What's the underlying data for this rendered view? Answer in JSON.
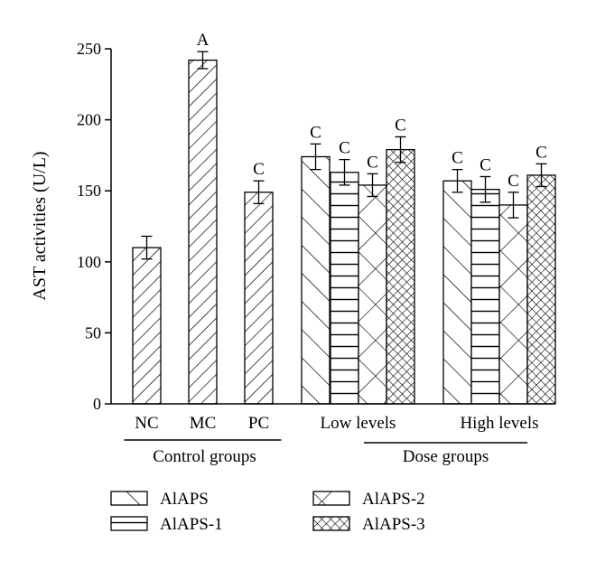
{
  "chart_data": {
    "type": "bar",
    "ylabel": "AST activities (U/L)",
    "xlabel": "",
    "title": "",
    "ylim": [
      0,
      250
    ],
    "yticks": [
      0,
      50,
      100,
      150,
      200,
      250
    ],
    "grid": false,
    "legend_position": "bottom",
    "bars": [
      {
        "group": "NC",
        "series": "NC",
        "value": 110,
        "error": 8,
        "label": "",
        "pattern": "diag"
      },
      {
        "group": "MC",
        "series": "MC",
        "value": 242,
        "error": 6,
        "label": "A",
        "pattern": "diag"
      },
      {
        "group": "PC",
        "series": "PC",
        "value": 149,
        "error": 8,
        "label": "C",
        "pattern": "diag"
      },
      {
        "group": "Low levels",
        "series": "AlAPS",
        "value": 174,
        "error": 9,
        "label": "C",
        "pattern": "backdiag"
      },
      {
        "group": "Low levels",
        "series": "AlAPS-1",
        "value": 163,
        "error": 9,
        "label": "C",
        "pattern": "horiz"
      },
      {
        "group": "Low levels",
        "series": "AlAPS-2",
        "value": 154,
        "error": 8,
        "label": "C",
        "pattern": "cross"
      },
      {
        "group": "Low levels",
        "series": "AlAPS-3",
        "value": 179,
        "error": 9,
        "label": "C",
        "pattern": "dense"
      },
      {
        "group": "High levels",
        "series": "AlAPS",
        "value": 157,
        "error": 8,
        "label": "C",
        "pattern": "backdiag"
      },
      {
        "group": "High levels",
        "series": "AlAPS-1",
        "value": 151,
        "error": 9,
        "label": "C",
        "pattern": "horiz"
      },
      {
        "group": "High levels",
        "series": "AlAPS-2",
        "value": 140,
        "error": 9,
        "label": "C",
        "pattern": "cross"
      },
      {
        "group": "High levels",
        "series": "AlAPS-3",
        "value": 161,
        "error": 8,
        "label": "C",
        "pattern": "dense"
      }
    ],
    "x_tick_labels": [
      "NC",
      "MC",
      "PC",
      "Low levels",
      "High levels"
    ],
    "group_labels": [
      "Control groups",
      "Dose groups"
    ],
    "legend": [
      {
        "name": "AlAPS",
        "pattern": "backdiag"
      },
      {
        "name": "AlAPS-1",
        "pattern": "horiz"
      },
      {
        "name": "AlAPS-2",
        "pattern": "cross"
      },
      {
        "name": "AlAPS-3",
        "pattern": "dense"
      }
    ]
  }
}
